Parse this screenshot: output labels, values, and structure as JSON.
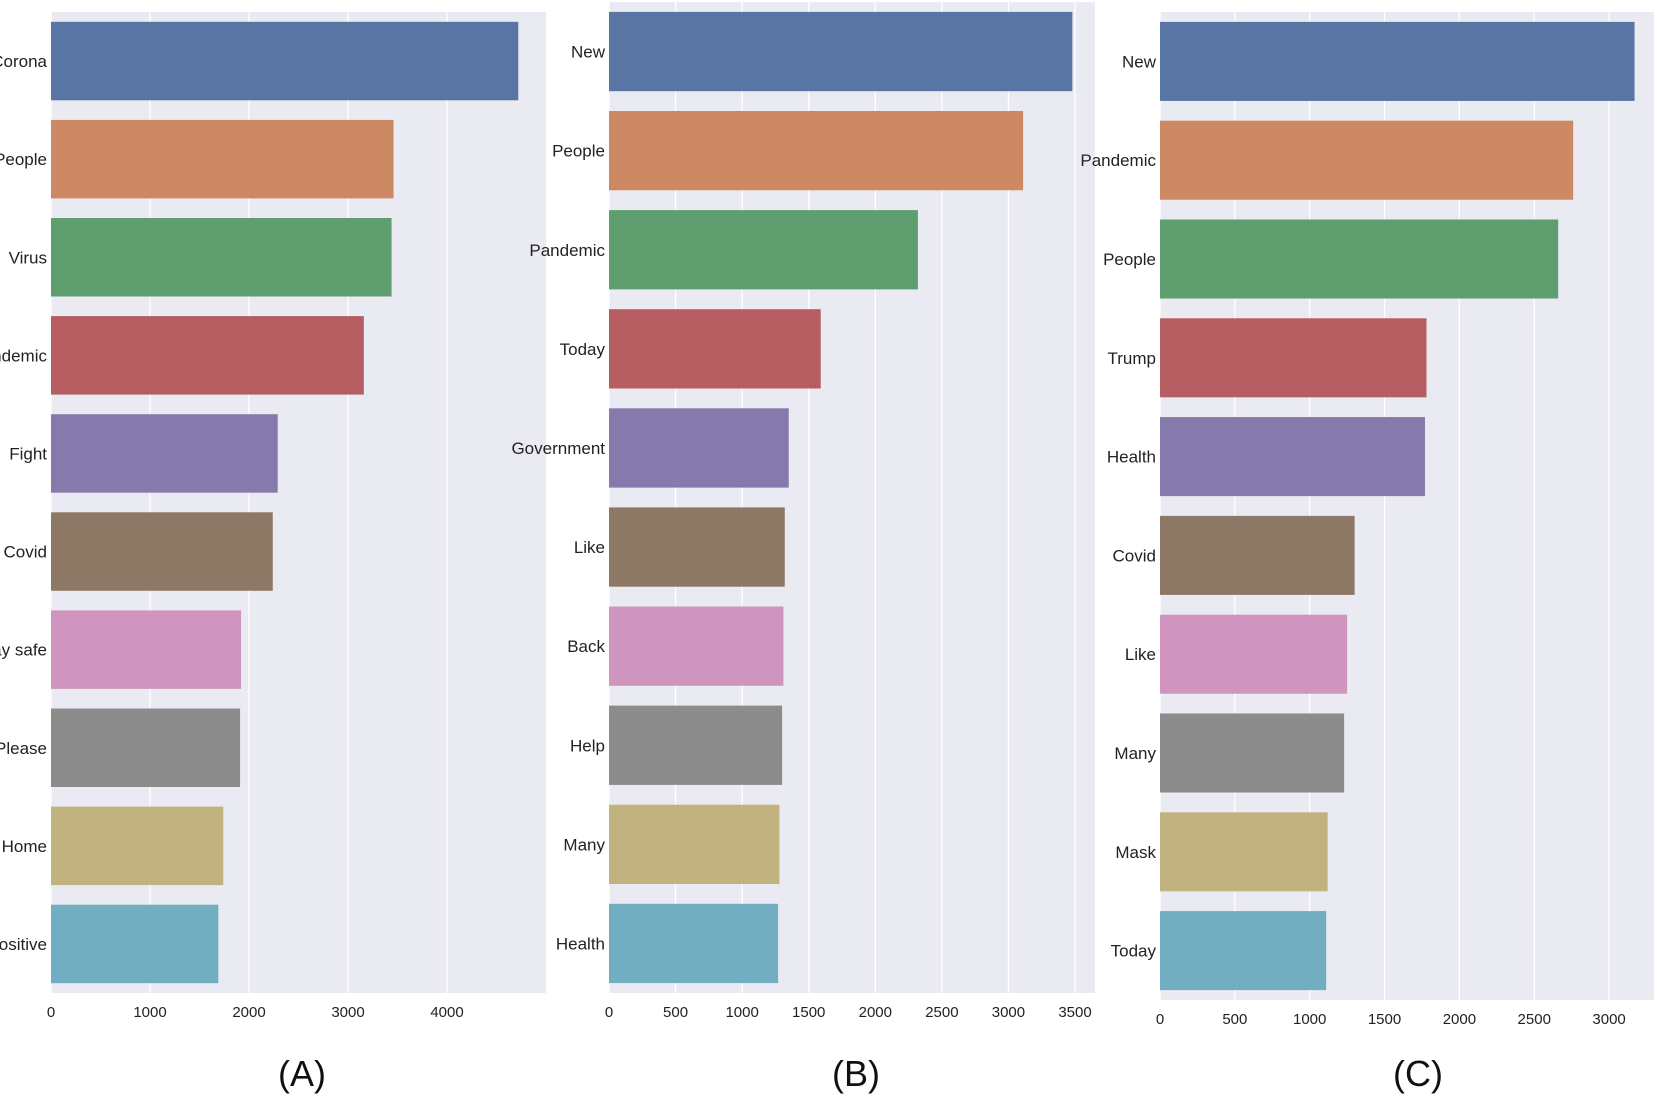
{
  "chart_data": [
    {
      "type": "bar",
      "orientation": "horizontal",
      "panel_label": "(A)",
      "categories": [
        "Corona",
        "People",
        "Virus",
        "Pandemic",
        "Fight",
        "Covid",
        "Stay safe",
        "Please",
        "Home",
        "Positive"
      ],
      "values": [
        4720,
        3460,
        3440,
        3160,
        2290,
        2240,
        1920,
        1910,
        1740,
        1690
      ],
      "xticks": [
        "0",
        "1000",
        "2000",
        "3000",
        "4000"
      ],
      "xlim": [
        0,
        5000
      ],
      "grid": true
    },
    {
      "type": "bar",
      "orientation": "horizontal",
      "panel_label": "(B)",
      "categories": [
        "New",
        "People",
        "Pandemic",
        "Today",
        "Government",
        "Like",
        "Back",
        "Help",
        "Many",
        "Health"
      ],
      "values": [
        3480,
        3110,
        2320,
        1590,
        1350,
        1320,
        1310,
        1300,
        1280,
        1270
      ],
      "xticks": [
        "0",
        "500",
        "1000",
        "1500",
        "2000",
        "2500",
        "3000",
        "3500"
      ],
      "xlim": [
        0,
        3650
      ],
      "grid": true
    },
    {
      "type": "bar",
      "orientation": "horizontal",
      "panel_label": "(C)",
      "categories": [
        "New",
        "Pandemic",
        "People",
        "Trump",
        "Health",
        "Covid",
        "Like",
        "Many",
        "Mask",
        "Today"
      ],
      "values": [
        3170,
        2760,
        2660,
        1780,
        1770,
        1300,
        1250,
        1230,
        1120,
        1110
      ],
      "xticks": [
        "0",
        "500",
        "1000",
        "1500",
        "2000",
        "2500",
        "3000"
      ],
      "xlim": [
        0,
        3300
      ],
      "grid": true
    }
  ],
  "colors": [
    "#5975a4",
    "#cc8963",
    "#5f9e6e",
    "#b55d60",
    "#857aab",
    "#8d7866",
    "#d095bf",
    "#8c8c8c",
    "#c1b37f",
    "#72aec1"
  ],
  "plot_background": "#eaeaf2",
  "grid_color": "#ffffff"
}
